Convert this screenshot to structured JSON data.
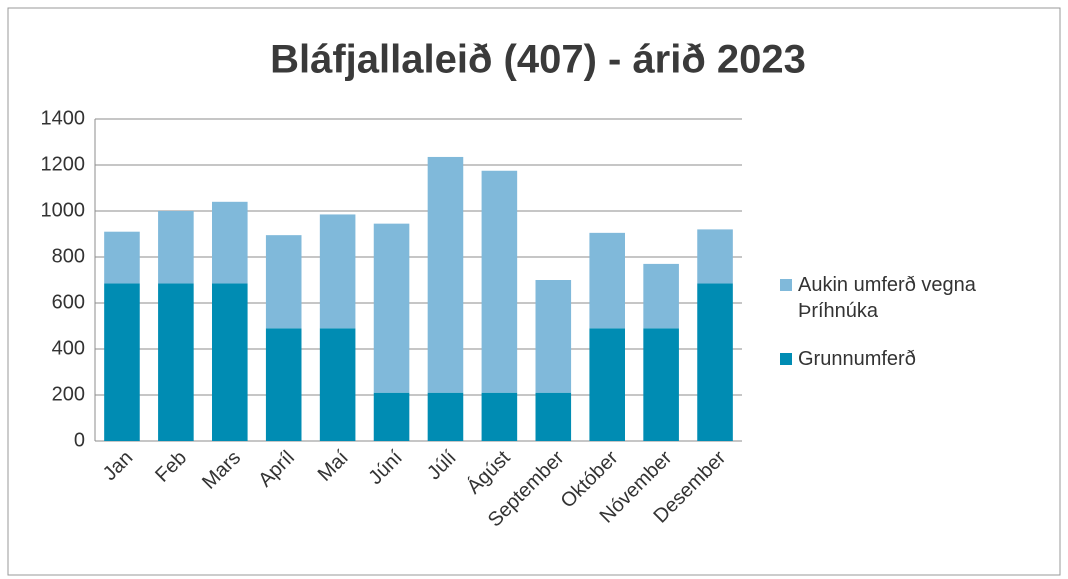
{
  "chart_data": {
    "type": "stacked_bar",
    "title": "Bláfjallaleið (407) - árið 2023",
    "categories": [
      "Jan",
      "Feb",
      "Mars",
      "Apríl",
      "Maí",
      "Júní",
      "Júlí",
      "Ágúst",
      "September",
      "Október",
      "Nóvember",
      "Desember"
    ],
    "series": [
      {
        "name": "Grunnumferð",
        "color": "#008cb3",
        "values": [
          685,
          685,
          685,
          490,
          490,
          210,
          210,
          210,
          210,
          490,
          490,
          685
        ]
      },
      {
        "name": "Aukin umferð vegna Þríhnúka",
        "color": "#80b9da",
        "values": [
          225,
          315,
          355,
          405,
          495,
          735,
          1025,
          965,
          490,
          415,
          280,
          235
        ]
      }
    ],
    "ylim": [
      0,
      1400
    ],
    "yticks": [
      0,
      200,
      400,
      600,
      800,
      1000,
      1200,
      1400
    ],
    "grid": true,
    "legend": "right"
  }
}
